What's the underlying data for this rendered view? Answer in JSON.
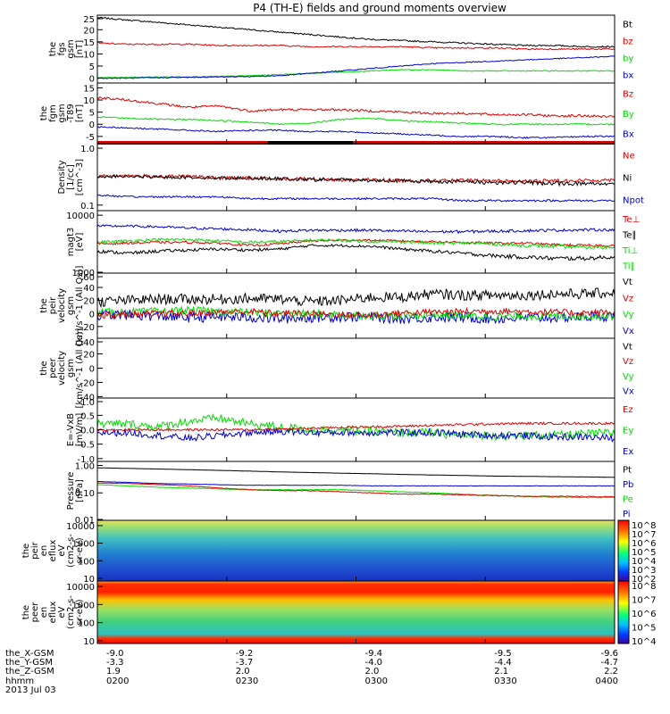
{
  "title": "P4 (TH-E) fields and ground moments overview",
  "colors": {
    "black": "#000000",
    "red": "#e00000",
    "green": "#00dd00",
    "blue": "#0000cc"
  },
  "chart_data": {
    "type": "line",
    "x_range": [
      "0200",
      "0400"
    ],
    "panels": [
      {
        "ylabel": [
          "the",
          "fgs",
          "gsm",
          "[nT]"
        ],
        "ticks": [
          "25",
          "20",
          "15",
          "10",
          "5",
          "0"
        ],
        "ylim": [
          -2,
          26
        ],
        "scale": "linear",
        "legend": [
          {
            "name": "Bt",
            "color": "black"
          },
          {
            "name": "bz",
            "color": "red"
          },
          {
            "name": "by",
            "color": "green"
          },
          {
            "name": "bx",
            "color": "blue"
          }
        ],
        "series": [
          {
            "name": "Bt",
            "color": "black",
            "values": [
              25,
              24,
              23,
              22,
              21,
              20,
              19,
              18,
              17,
              16,
              15.5,
              15,
              14.5,
              14,
              13.5,
              13.5,
              13,
              13
            ],
            "noise": 0.3
          },
          {
            "name": "bz",
            "color": "red",
            "values": [
              14.5,
              14,
              14,
              14,
              13.5,
              13.5,
              13.5,
              13,
              13,
              13,
              13,
              12.5,
              12.5,
              12.5,
              12,
              12,
              12,
              12
            ],
            "noise": 0.3
          },
          {
            "name": "by",
            "color": "green",
            "values": [
              0.2,
              0.3,
              0.5,
              0.6,
              0.7,
              1,
              1.5,
              2,
              2.5,
              3,
              3.5,
              3.5,
              3,
              3,
              3,
              3,
              3,
              3
            ],
            "noise": 0.2
          },
          {
            "name": "bx",
            "color": "blue",
            "values": [
              0,
              0,
              0.2,
              0.3,
              0.5,
              0.7,
              1,
              2,
              3,
              4,
              5,
              6,
              6.5,
              7,
              7.5,
              8,
              8.5,
              9
            ],
            "noise": 0.2
          }
        ]
      },
      {
        "ylabel": [
          "the",
          "fgm",
          "gsm",
          "-T89",
          "[nT]"
        ],
        "ticks": [
          "15",
          "10",
          "5",
          "0",
          "-5"
        ],
        "ylim": [
          -8,
          17
        ],
        "scale": "linear",
        "legend": [
          {
            "name": "Bz",
            "color": "red"
          },
          {
            "name": "By",
            "color": "green"
          },
          {
            "name": "Bx",
            "color": "blue"
          }
        ],
        "series": [
          {
            "name": "Bz",
            "color": "red",
            "values": [
              11,
              10,
              8.5,
              7,
              7.5,
              5.5,
              6,
              6,
              6,
              5.5,
              5,
              4.5,
              4.5,
              4,
              4,
              3.5,
              3.5,
              3
            ],
            "noise": 0.5
          },
          {
            "name": "By",
            "color": "green",
            "values": [
              3,
              2.5,
              2,
              2,
              1.5,
              1,
              0,
              0.5,
              2,
              2.5,
              1.5,
              1,
              0.5,
              0,
              0,
              0,
              0,
              0
            ],
            "noise": 0.3
          },
          {
            "name": "Bx",
            "color": "blue",
            "values": [
              -1,
              -1.5,
              -2,
              -2.5,
              -3,
              -2.5,
              -2.5,
              -3,
              -3,
              -3.5,
              -4,
              -4.5,
              -5,
              -5,
              -5.5,
              -5.5,
              -5,
              -5
            ],
            "noise": 0.3
          }
        ]
      },
      {
        "ylabel": [
          "Density",
          "[1/cc]",
          "[cm^-3]"
        ],
        "ticks": [
          "1.0",
          "0.1"
        ],
        "ylim": [
          0.08,
          1.2
        ],
        "scale": "log",
        "legend": [
          {
            "name": "Ne",
            "color": "red"
          },
          {
            "name": "Ni",
            "color": "black"
          },
          {
            "name": "Npot",
            "color": "blue"
          }
        ],
        "series": [
          {
            "name": "Ne",
            "color": "red",
            "values": [
              0.32,
              0.33,
              0.32,
              0.32,
              0.3,
              0.3,
              0.29,
              0.29,
              0.28,
              0.28,
              0.27,
              0.27,
              0.27,
              0.27,
              0.26,
              0.27,
              0.27,
              0.28
            ],
            "noise": 0.02
          },
          {
            "name": "Ni",
            "color": "black",
            "values": [
              0.32,
              0.32,
              0.31,
              0.31,
              0.3,
              0.3,
              0.29,
              0.28,
              0.28,
              0.27,
              0.27,
              0.26,
              0.26,
              0.25,
              0.25,
              0.24,
              0.24,
              0.24
            ],
            "noise": 0.02
          },
          {
            "name": "Npot",
            "color": "blue",
            "values": [
              0.15,
              0.14,
              0.14,
              0.14,
              0.14,
              0.13,
              0.13,
              0.13,
              0.13,
              0.13,
              0.13,
              0.13,
              0.12,
              0.12,
              0.12,
              0.12,
              0.12,
              0.12
            ],
            "noise": 0.005
          }
        ]
      },
      {
        "ylabel": [
          "magt3",
          "[eV]"
        ],
        "ticks": [
          "10000",
          "1000"
        ],
        "ylim": [
          1000,
          12000
        ],
        "scale": "log",
        "legend": [
          {
            "name": "Te⊥",
            "color": "red"
          },
          {
            "name": "Te∥",
            "color": "black"
          },
          {
            "name": "Ti⊥",
            "color": "green"
          },
          {
            "name": "Ti∥",
            "color": "green"
          }
        ],
        "series": [
          {
            "name": "Ti⊥",
            "color": "blue",
            "values": [
              6500,
              6500,
              6300,
              6000,
              5800,
              5600,
              5300,
              5500,
              5500,
              5500,
              5300,
              5200,
              5200,
              5300,
              5400,
              5500,
              5600,
              5600
            ],
            "noise": 300
          },
          {
            "name": "Te⊥",
            "color": "red",
            "values": [
              3200,
              3300,
              3400,
              3400,
              3300,
              3000,
              3200,
              3600,
              3700,
              3700,
              3600,
              3500,
              3400,
              3300,
              3300,
              3100,
              3000,
              3000
            ],
            "noise": 150
          },
          {
            "name": "Ti∥",
            "color": "green",
            "values": [
              3400,
              3600,
              3800,
              3800,
              3600,
              3400,
              3500,
              3700,
              3700,
              3500,
              3500,
              3300,
              3300,
              3200,
              3000,
              2900,
              2800,
              2800
            ],
            "noise": 200
          },
          {
            "name": "Te∥",
            "color": "black",
            "values": [
              2400,
              2200,
              2400,
              2500,
              2600,
              2500,
              2600,
              3000,
              3000,
              2900,
              2600,
              2400,
              2200,
              2000,
              1900,
              1800,
              1800,
              1900
            ],
            "noise": 150
          }
        ]
      },
      {
        "ylabel": [
          "the",
          "peir",
          "velocity",
          "gsm",
          "[km/s^-1 (All Qs)]"
        ],
        "ticks": [
          "60",
          "40",
          "20",
          "0",
          "-20"
        ],
        "ylim": [
          -38,
          62
        ],
        "scale": "linear",
        "legend": [
          {
            "name": "Vt",
            "color": "black"
          },
          {
            "name": "Vz",
            "color": "red"
          },
          {
            "name": "Vy",
            "color": "green"
          },
          {
            "name": "Vx",
            "color": "blue"
          }
        ],
        "series": [
          {
            "name": "Vx",
            "color": "blue",
            "values": [
              -2,
              -2,
              -4,
              -6,
              -5,
              -6,
              -8,
              -6,
              -5,
              -5,
              -8,
              -6,
              -6,
              -8,
              -7,
              -6,
              -5,
              -4
            ],
            "noise": 8
          },
          {
            "name": "Vy",
            "color": "green",
            "values": [
              2,
              2,
              3,
              5,
              3,
              2,
              0,
              0,
              -2,
              -3,
              -3,
              -2,
              -3,
              -5,
              -4,
              -4,
              -4,
              -4
            ],
            "noise": 6
          },
          {
            "name": "Vz",
            "color": "red",
            "values": [
              -3,
              -2,
              0,
              0,
              2,
              3,
              0,
              0,
              -2,
              -3,
              1,
              2,
              3,
              4,
              3,
              2,
              1,
              2
            ],
            "noise": 5
          },
          {
            "name": "Vt",
            "color": "black",
            "values": [
              18,
              20,
              22,
              22,
              22,
              23,
              22,
              18,
              20,
              25,
              25,
              30,
              28,
              28,
              28,
              30,
              30,
              32
            ],
            "noise": 8
          }
        ]
      },
      {
        "ylabel": [
          "the",
          "peer",
          "velocity",
          "gsm",
          "[km/s^-1 (All Qs)]"
        ],
        "ticks": [
          "40",
          "20",
          "0",
          "-20",
          "-40"
        ],
        "ylim": [
          -42,
          42
        ],
        "scale": "linear",
        "legend": [
          {
            "name": "Vt",
            "color": "black"
          },
          {
            "name": "Vz",
            "color": "red"
          },
          {
            "name": "Vy",
            "color": "green"
          },
          {
            "name": "Vx",
            "color": "blue"
          }
        ],
        "series": []
      },
      {
        "ylabel": [
          "E=-VxB",
          "[mV/m]"
        ],
        "ticks": [
          "1.0",
          "0.5",
          "0.0",
          "-0.5",
          "-1.0"
        ],
        "ylim": [
          -1.1,
          1.1
        ],
        "scale": "linear",
        "legend": [
          {
            "name": "Ez",
            "color": "red"
          },
          {
            "name": "Ey",
            "color": "green"
          },
          {
            "name": "Ex",
            "color": "blue"
          }
        ],
        "series": [
          {
            "name": "Ey",
            "color": "green",
            "values": [
              0.2,
              0.2,
              0.1,
              0.3,
              0.4,
              0.2,
              0.1,
              0,
              0,
              -0.05,
              -0.1,
              -0.1,
              -0.2,
              -0.2,
              -0.2,
              -0.2,
              -0.15,
              -0.1
            ],
            "noise": 0.15
          },
          {
            "name": "Ex",
            "color": "blue",
            "values": [
              -0.1,
              -0.1,
              -0.2,
              -0.3,
              -0.2,
              -0.1,
              -0.05,
              -0.1,
              -0.1,
              -0.1,
              -0.1,
              -0.1,
              -0.15,
              -0.2,
              -0.2,
              -0.25,
              -0.25,
              -0.3
            ],
            "noise": 0.12
          },
          {
            "name": "Ez",
            "color": "red",
            "values": [
              0,
              0,
              0,
              0,
              0,
              0,
              0.02,
              0.05,
              0.08,
              0.1,
              0.12,
              0.15,
              0.18,
              0.2,
              0.22,
              0.22,
              0.22,
              0.22
            ],
            "noise": 0.04
          }
        ]
      },
      {
        "ylabel": [
          "Pressure",
          "[nPa]"
        ],
        "ticks": [
          "1.00",
          "0.10",
          "0.01"
        ],
        "ylim": [
          0.01,
          1.4
        ],
        "scale": "log",
        "legend": [
          {
            "name": "Pt",
            "color": "black"
          },
          {
            "name": "Pb",
            "color": "blue"
          },
          {
            "name": "Pe",
            "color": "green"
          },
          {
            "name": "Pi",
            "color": "blue"
          }
        ],
        "series": [
          {
            "name": "Pt",
            "color": "black",
            "values": [
              0.82,
              0.78,
              0.74,
              0.7,
              0.66,
              0.62,
              0.58,
              0.55,
              0.52,
              0.5,
              0.47,
              0.45,
              0.43,
              0.41,
              0.4,
              0.39,
              0.38,
              0.37
            ],
            "noise": 0.003
          },
          {
            "name": "Pb",
            "color": "blue",
            "values": [
              0.26,
              0.24,
              0.22,
              0.21,
              0.2,
              0.19,
              0.19,
              0.19,
              0.19,
              0.18,
              0.18,
              0.18,
              0.18,
              0.18,
              0.18,
              0.18,
              0.18,
              0.18
            ],
            "noise": 0.003
          },
          {
            "name": "Pe",
            "color": "green",
            "values": [
              0.2,
              0.18,
              0.16,
              0.15,
              0.14,
              0.13,
              0.13,
              0.13,
              0.13,
              0.12,
              0.11,
              0.1,
              0.09,
              0.08,
              0.075,
              0.07,
              0.068,
              0.068
            ],
            "noise": 0.003
          },
          {
            "name": "Pi",
            "color": "red",
            "values": [
              0.23,
              0.22,
              0.2,
              0.18,
              0.15,
              0.13,
              0.12,
              0.12,
              0.11,
              0.1,
              0.09,
              0.09,
              0.085,
              0.08,
              0.075,
              0.075,
              0.073,
              0.072
            ],
            "noise": 0.003
          }
        ]
      },
      {
        "ylabel": [
          "the",
          "peir",
          "en",
          "eflux",
          "eV",
          "(cm2-s-",
          "sr-eV)"
        ],
        "ticks": [
          "10000",
          "1000",
          "100",
          "10"
        ],
        "scale": "log",
        "spectrogram": true,
        "colorbar": {
          "ticks": [
            "10^8",
            "10^7",
            "10^6",
            "10^5",
            "10^4",
            "10^3",
            "10^2"
          ]
        }
      },
      {
        "ylabel": [
          "the",
          "peer",
          "en",
          "eflux",
          "eV",
          "(cm2-s-",
          "sr-eV)"
        ],
        "ticks": [
          "10000",
          "1000",
          "100",
          "10"
        ],
        "scale": "log",
        "spectrogram": true,
        "colorbar": {
          "ticks": [
            "10^8",
            "10^7",
            "10^6",
            "10^5",
            "10^4"
          ]
        }
      }
    ],
    "xaxis": {
      "labels": [
        "the_X-GSM",
        "the_Y-GSM",
        "the_Z-GSM",
        "hhmm",
        "2013 Jul 03"
      ],
      "columns": [
        {
          "x": "-9.0",
          "y": "-3.3",
          "z": "1.9",
          "t": "0200"
        },
        {
          "x": "-9.2",
          "y": "-3.7",
          "z": "2.0",
          "t": "0230"
        },
        {
          "x": "-9.4",
          "y": "-4.0",
          "z": "2.0",
          "t": "0300"
        },
        {
          "x": "-9.5",
          "y": "-4.4",
          "z": "2.1",
          "t": "0330"
        },
        {
          "x": "-9.6",
          "y": "-4.7",
          "z": "2.2",
          "t": "0400"
        }
      ]
    }
  }
}
